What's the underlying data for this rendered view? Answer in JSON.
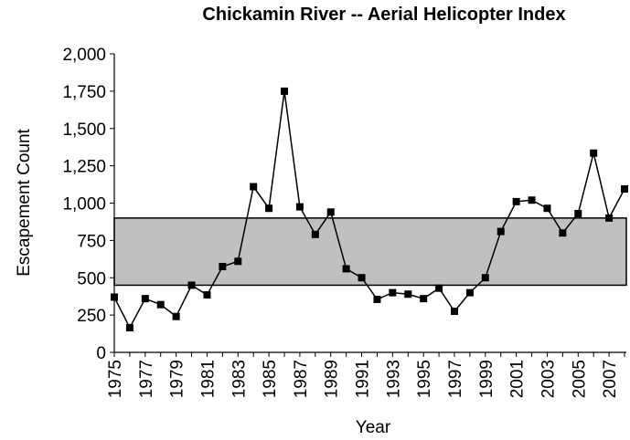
{
  "chart_data": {
    "type": "line",
    "title": "Chickamin River -- Aerial Helicopter Index",
    "x_label": "Year",
    "y_label": "Escapement Count",
    "x": [
      1975,
      1976,
      1977,
      1978,
      1979,
      1980,
      1981,
      1982,
      1983,
      1984,
      1985,
      1986,
      1987,
      1988,
      1989,
      1990,
      1991,
      1992,
      1993,
      1994,
      1995,
      1996,
      1997,
      1998,
      1999,
      2000,
      2001,
      2002,
      2003,
      2004,
      2005,
      2006,
      2007,
      2008
    ],
    "series": [
      {
        "color": "#000000",
        "values": [
          370,
          165,
          360,
          320,
          240,
          450,
          385,
          575,
          610,
          1110,
          965,
          1750,
          975,
          790,
          940,
          560,
          500,
          355,
          400,
          390,
          360,
          430,
          275,
          400,
          500,
          810,
          1010,
          1020,
          965,
          800,
          930,
          1335,
          900,
          1095
        ]
      }
    ],
    "band": {
      "low": 450,
      "high": 900,
      "color": "#c0c0c0"
    },
    "xlim": [
      1975,
      2008
    ],
    "xticks": [
      1975,
      1977,
      1979,
      1981,
      1983,
      1985,
      1987,
      1989,
      1991,
      1993,
      1995,
      1997,
      1999,
      2001,
      2003,
      2005,
      2007
    ],
    "ylim": [
      0,
      2000
    ],
    "yticks": [
      0,
      250,
      500,
      750,
      {
        "value": 1000,
        "label": "1,000"
      },
      {
        "value": 1250,
        "label": "1,250"
      },
      {
        "value": 1500,
        "label": "1,500"
      },
      {
        "value": 1750,
        "label": "1,750"
      },
      {
        "value": 2000,
        "label": "2,000"
      }
    ]
  }
}
